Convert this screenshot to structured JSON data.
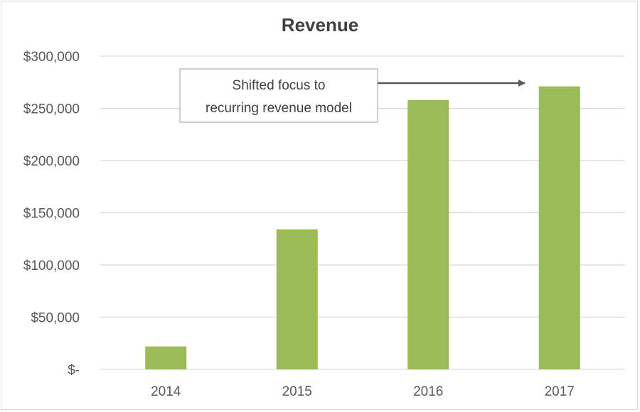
{
  "chart_data": {
    "type": "bar",
    "title": "Revenue",
    "xlabel": "",
    "ylabel": "",
    "categories": [
      "2014",
      "2015",
      "2016",
      "2017"
    ],
    "values": [
      22000,
      134000,
      258000,
      271000
    ],
    "ylim": [
      0,
      300000
    ],
    "yticks": [
      0,
      50000,
      100000,
      150000,
      200000,
      250000,
      300000
    ],
    "ytick_labels": [
      "$-",
      "$50,000",
      "$100,000",
      "$150,000",
      "$200,000",
      "$250,000",
      "$300,000"
    ],
    "grid": true,
    "legend": "none",
    "bar_color": "#9bbb59",
    "annotation": {
      "lines": [
        "Shifted focus to",
        "recurring revenue model"
      ],
      "points_to": "2017"
    }
  }
}
